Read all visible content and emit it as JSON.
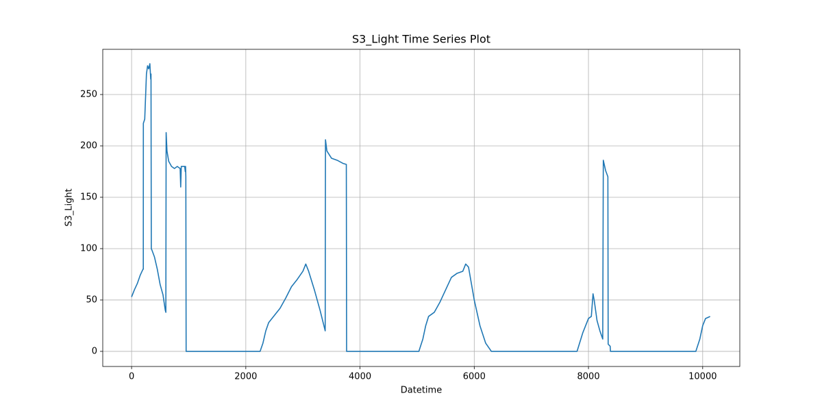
{
  "chart_data": {
    "type": "line",
    "title": "S3_Light Time Series Plot",
    "x_label": "Datetime",
    "y_label": "S3_Light",
    "x": [
      0,
      50,
      100,
      150,
      200,
      205,
      206,
      230,
      250,
      260,
      280,
      300,
      320,
      335,
      340,
      345,
      360,
      400,
      450,
      500,
      550,
      590,
      600,
      605,
      620,
      650,
      700,
      750,
      800,
      850,
      860,
      870,
      900,
      930,
      940,
      945,
      950,
      955,
      2250,
      2300,
      2350,
      2400,
      2500,
      2600,
      2700,
      2800,
      2900,
      3000,
      3050,
      3100,
      3200,
      3300,
      3390,
      3395,
      3420,
      3500,
      3600,
      3700,
      3760,
      3765,
      5030,
      5100,
      5150,
      5200,
      5300,
      5400,
      5500,
      5600,
      5700,
      5800,
      5850,
      5900,
      6000,
      6100,
      6200,
      6300,
      7800,
      7900,
      8000,
      8050,
      8080,
      8100,
      8150,
      8200,
      8250,
      8260,
      8300,
      8340,
      8345,
      8380,
      8385,
      9880,
      9950,
      10000,
      10050,
      10130
    ],
    "values": [
      53,
      60,
      66,
      74,
      80,
      80,
      222,
      226,
      255,
      270,
      278,
      275,
      280,
      265,
      270,
      100,
      98,
      92,
      80,
      65,
      55,
      40,
      38,
      213,
      195,
      185,
      180,
      178,
      180,
      178,
      160,
      180,
      180,
      180,
      175,
      180,
      170,
      0,
      0,
      8,
      20,
      28,
      35,
      42,
      52,
      63,
      70,
      78,
      85,
      78,
      60,
      40,
      20,
      206,
      195,
      188,
      186,
      183,
      182,
      0,
      0,
      12,
      25,
      34,
      38,
      48,
      60,
      72,
      76,
      78,
      85,
      82,
      50,
      25,
      8,
      0,
      0,
      18,
      32,
      34,
      56,
      50,
      30,
      20,
      12,
      186,
      176,
      170,
      7,
      5,
      0,
      0,
      12,
      25,
      32,
      34
    ],
    "color": "#1f77b4",
    "xlim": [
      -505,
      10650
    ],
    "ylim": [
      -14.7,
      294
    ],
    "xticks": [
      0,
      2000,
      4000,
      6000,
      8000,
      10000
    ],
    "yticks": [
      0,
      50,
      100,
      150,
      200,
      250
    ],
    "grid": true
  }
}
